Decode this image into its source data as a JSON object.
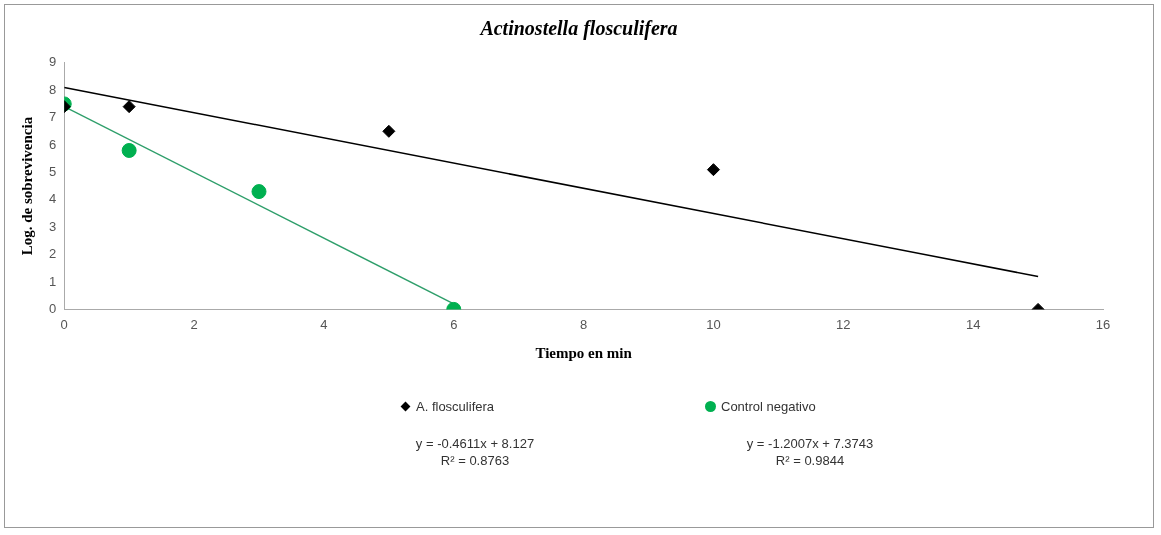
{
  "chart_data": {
    "type": "scatter",
    "title": "Actinostella flosculifera",
    "xlabel": "Tiempo en min",
    "ylabel": "Log. de sobrevivencia",
    "xlim": [
      0,
      16
    ],
    "xticks": [
      0,
      2,
      4,
      6,
      8,
      10,
      12,
      14,
      16
    ],
    "ylim": [
      0,
      9
    ],
    "yticks": [
      0,
      1,
      2,
      3,
      4,
      5,
      6,
      7,
      8,
      9
    ],
    "grid": false,
    "legend": "bottom",
    "series": [
      {
        "name": "A. flosculifera",
        "marker": "diamond",
        "color": "#000000",
        "x": [
          0,
          1,
          5,
          10,
          15
        ],
        "values": [
          7.4,
          7.4,
          6.5,
          5.1,
          0
        ]
      },
      {
        "name": "Control negativo",
        "marker": "circle",
        "color": "#00b050",
        "x": [
          0,
          1,
          3,
          6
        ],
        "values": [
          7.5,
          5.8,
          4.3,
          0
        ]
      },
      {
        "type": "line",
        "marker": "none",
        "color": "#000000",
        "x": [
          0,
          15
        ],
        "values": [
          8.1,
          1.2
        ]
      },
      {
        "type": "line",
        "marker": "none",
        "color": "#2e9e6a",
        "x": [
          0,
          6
        ],
        "values": [
          7.4,
          0.2
        ]
      }
    ],
    "annotations": [
      "y = -0.4611x + 8.127\nR² = 0.8763",
      "y = -1.2007x + 7.3743\nR² = 0.9844"
    ]
  }
}
